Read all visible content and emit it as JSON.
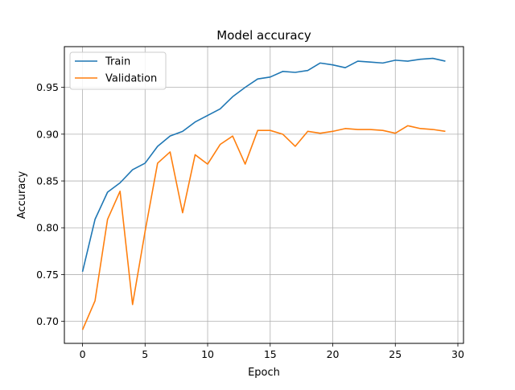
{
  "chart_data": {
    "type": "line",
    "title": "Model accuracy",
    "xlabel": "Epoch",
    "ylabel": "Accuracy",
    "xlim": [
      -1.45,
      30.45
    ],
    "ylim": [
      0.6765,
      0.9935
    ],
    "xticks": [
      0,
      5,
      10,
      15,
      20,
      25,
      30
    ],
    "yticks": [
      0.7,
      0.75,
      0.8,
      0.85,
      0.9,
      0.95
    ],
    "ytick_labels": [
      "0.70",
      "0.75",
      "0.80",
      "0.85",
      "0.90",
      "0.95"
    ],
    "grid": true,
    "legend_position": "upper left",
    "x": [
      0,
      1,
      2,
      3,
      4,
      5,
      6,
      7,
      8,
      9,
      10,
      11,
      12,
      13,
      14,
      15,
      16,
      17,
      18,
      19,
      20,
      21,
      22,
      23,
      24,
      25,
      26,
      27,
      28,
      29
    ],
    "series": [
      {
        "name": "Train",
        "color": "#1f77b4",
        "values": [
          0.753,
          0.809,
          0.838,
          0.848,
          0.862,
          0.869,
          0.887,
          0.898,
          0.903,
          0.913,
          0.92,
          0.927,
          0.94,
          0.95,
          0.959,
          0.961,
          0.967,
          0.966,
          0.968,
          0.976,
          0.974,
          0.971,
          0.978,
          0.977,
          0.976,
          0.979,
          0.978,
          0.98,
          0.981,
          0.978
        ]
      },
      {
        "name": "Validation",
        "color": "#ff7f0e",
        "values": [
          0.691,
          0.722,
          0.809,
          0.839,
          0.718,
          0.796,
          0.869,
          0.881,
          0.816,
          0.878,
          0.868,
          0.889,
          0.898,
          0.868,
          0.904,
          0.904,
          0.9,
          0.887,
          0.903,
          0.901,
          0.903,
          0.906,
          0.905,
          0.905,
          0.904,
          0.901,
          0.909,
          0.906,
          0.905,
          0.903
        ]
      }
    ]
  }
}
